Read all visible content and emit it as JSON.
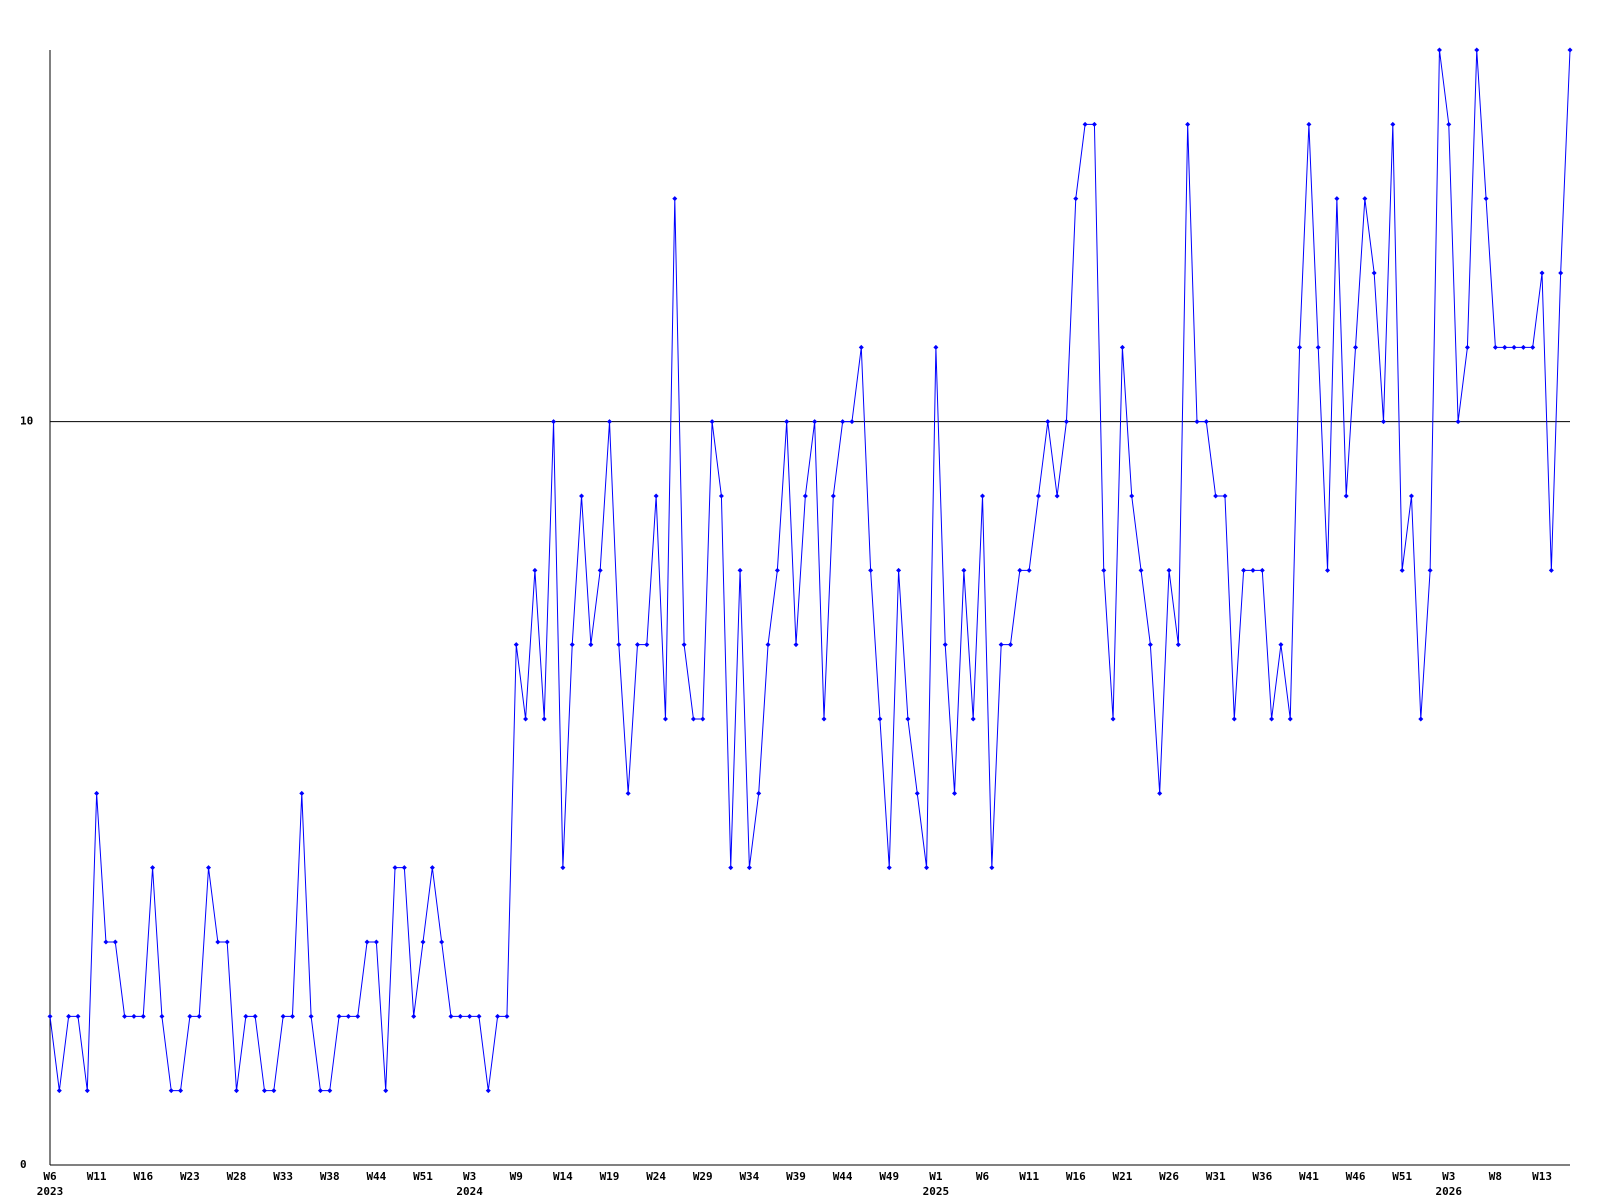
{
  "chart_data": {
    "type": "line",
    "categories": [
      "W6",
      null,
      null,
      null,
      null,
      "W11",
      null,
      null,
      null,
      null,
      "W16",
      null,
      null,
      null,
      null,
      "W23",
      null,
      null,
      null,
      null,
      "W28",
      null,
      null,
      null,
      null,
      "W33",
      null,
      null,
      null,
      null,
      "W38",
      null,
      null,
      null,
      null,
      "W44",
      null,
      null,
      null,
      null,
      "W51",
      null,
      null,
      null,
      null,
      "W3",
      null,
      null,
      null,
      null,
      "W9",
      null,
      null,
      null,
      null,
      "W14",
      null,
      null,
      null,
      null,
      "W19",
      null,
      null,
      null,
      null,
      "W24",
      null,
      null,
      null,
      null,
      "W29",
      null,
      null,
      null,
      null,
      "W34",
      null,
      null,
      null,
      null,
      "W39",
      null,
      null,
      null,
      null,
      "W44",
      null,
      null,
      null,
      null,
      "W49",
      null,
      null,
      null,
      null,
      "W1",
      null,
      null,
      null,
      null,
      "W6",
      null,
      null,
      null,
      null,
      "W11",
      null,
      null,
      null,
      null,
      "W16",
      null,
      null,
      null,
      null,
      "W21",
      null,
      null,
      null,
      null,
      "W26",
      null,
      null,
      null,
      null,
      "W31",
      null,
      null,
      null,
      null,
      "W36",
      null,
      null,
      null,
      null,
      "W41",
      null,
      null,
      null,
      null,
      "W46",
      null,
      null,
      null,
      null,
      "W51",
      null,
      null,
      null,
      null,
      "W3",
      null,
      null,
      null,
      null,
      "W8",
      null,
      null,
      null,
      null,
      "W13",
      null,
      null,
      null
    ],
    "category_years": [
      "2023",
      null,
      null,
      null,
      null,
      null,
      null,
      null,
      null,
      null,
      null,
      null,
      null,
      null,
      null,
      null,
      null,
      null,
      null,
      null,
      null,
      null,
      null,
      null,
      null,
      null,
      null,
      null,
      null,
      null,
      null,
      null,
      null,
      null,
      null,
      null,
      null,
      null,
      null,
      null,
      null,
      null,
      null,
      null,
      null,
      "2024",
      null,
      null,
      null,
      null,
      null,
      null,
      null,
      null,
      null,
      null,
      null,
      null,
      null,
      null,
      null,
      null,
      null,
      null,
      null,
      null,
      null,
      null,
      null,
      null,
      null,
      null,
      null,
      null,
      null,
      null,
      null,
      null,
      null,
      null,
      null,
      null,
      null,
      null,
      null,
      null,
      null,
      null,
      null,
      null,
      null,
      null,
      null,
      null,
      null,
      "2025",
      null,
      null,
      null,
      null,
      null,
      null,
      null,
      null,
      null,
      null,
      null,
      null,
      null,
      null,
      null,
      null,
      null,
      null,
      null,
      null,
      null,
      null,
      null,
      null,
      null,
      null,
      null,
      null,
      null,
      null,
      null,
      null,
      null,
      null,
      null,
      null,
      null,
      null,
      null,
      null,
      null,
      null,
      null,
      null,
      null,
      null,
      null,
      null,
      null,
      null,
      null,
      null,
      null,
      null,
      "2026",
      null,
      null,
      null,
      null,
      null,
      null,
      null,
      null,
      null,
      null,
      null,
      null,
      null
    ],
    "values": [
      2,
      1,
      2,
      2,
      1,
      5,
      3,
      3,
      2,
      2,
      2,
      4,
      2,
      1,
      1,
      2,
      2,
      4,
      3,
      3,
      1,
      2,
      2,
      1,
      1,
      2,
      2,
      5,
      2,
      1,
      1,
      2,
      2,
      2,
      3,
      3,
      1,
      4,
      4,
      2,
      3,
      4,
      3,
      2,
      2,
      2,
      2,
      1,
      2,
      2,
      7,
      6,
      8,
      6,
      10,
      4,
      7,
      9,
      7,
      8,
      10,
      7,
      5,
      7,
      7,
      9,
      6,
      13,
      7,
      6,
      6,
      10,
      9,
      4,
      8,
      4,
      5,
      7,
      8,
      10,
      7,
      9,
      10,
      6,
      9,
      10,
      10,
      11,
      8,
      6,
      4,
      8,
      6,
      5,
      4,
      11,
      7,
      5,
      8,
      6,
      9,
      4,
      7,
      7,
      8,
      8,
      9,
      10,
      9,
      10,
      13,
      14,
      14,
      8,
      6,
      11,
      9,
      8,
      7,
      5,
      8,
      7,
      14,
      10,
      10,
      9,
      9,
      6,
      8,
      8,
      8,
      6,
      7,
      6,
      11,
      14,
      11,
      8,
      13,
      9,
      11,
      13,
      12,
      10,
      14,
      8,
      9,
      6,
      8,
      15,
      14,
      10,
      11,
      15,
      13,
      11,
      11,
      11,
      11,
      11,
      12,
      8,
      12,
      15
    ],
    "color": "#0000ff",
    "ylim": [
      0,
      15
    ],
    "yticks": [
      0,
      10
    ],
    "grid": true
  }
}
